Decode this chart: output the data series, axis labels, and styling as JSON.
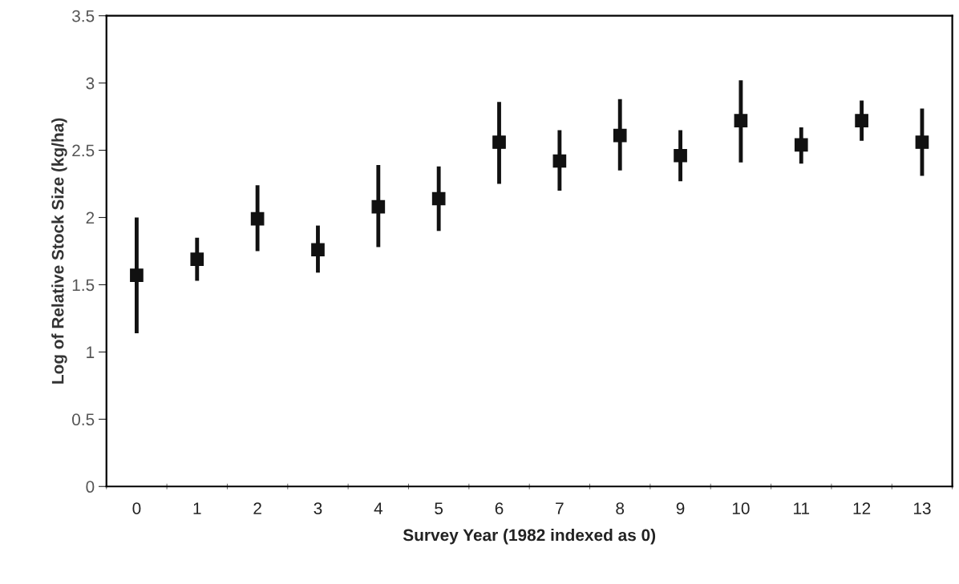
{
  "chart_data": {
    "type": "scatter",
    "xlabel": "Survey Year (1982 indexed as 0)",
    "ylabel": "Log of Relative Stock Size (kg/ha)",
    "categories": [
      "0",
      "1",
      "2",
      "3",
      "4",
      "5",
      "6",
      "7",
      "8",
      "9",
      "10",
      "11",
      "12",
      "13"
    ],
    "series": [
      {
        "color": "#111111",
        "values": [
          1.57,
          1.69,
          1.99,
          1.76,
          2.08,
          2.14,
          2.56,
          2.42,
          2.61,
          2.46,
          2.72,
          2.54,
          2.72,
          2.56
        ],
        "errors": [
          [
            1.14,
            2.0
          ],
          [
            1.53,
            1.85
          ],
          [
            1.75,
            2.24
          ],
          [
            1.59,
            1.94
          ],
          [
            1.78,
            2.39
          ],
          [
            1.9,
            2.38
          ],
          [
            2.25,
            2.86
          ],
          [
            2.2,
            2.65
          ],
          [
            2.35,
            2.88
          ],
          [
            2.27,
            2.65
          ],
          [
            2.41,
            3.02
          ],
          [
            2.4,
            2.67
          ],
          [
            2.57,
            2.87
          ],
          [
            2.31,
            2.81
          ]
        ]
      }
    ],
    "ylim": [
      0,
      3.5
    ],
    "yticks": [
      0,
      0.5,
      1,
      1.5,
      2,
      2.5,
      3,
      3.5
    ],
    "grid": false,
    "legend": false,
    "marker": "square"
  }
}
